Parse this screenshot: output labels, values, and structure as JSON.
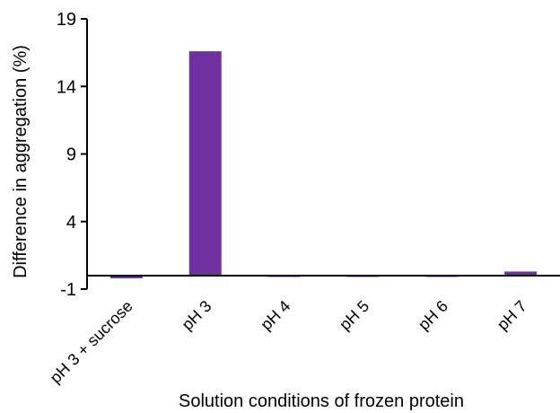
{
  "chart_data": {
    "type": "bar",
    "title": "",
    "xlabel": "Solution conditions of frozen protein",
    "ylabel": "Difference in aggregation (%)",
    "categories": [
      "pH 3 + sucrose",
      "pH 3",
      "pH 4",
      "pH 5",
      "pH 6",
      "pH 7"
    ],
    "values": [
      -0.2,
      16.6,
      -0.05,
      0.0,
      -0.1,
      0.3
    ],
    "ylim": [
      -1,
      19
    ],
    "yticks": [
      -1,
      4,
      9,
      14,
      19
    ],
    "grid": false,
    "legend": "none",
    "bar_color": "#7030a0"
  }
}
